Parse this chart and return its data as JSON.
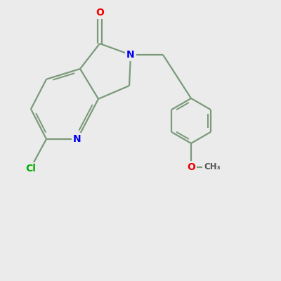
{
  "background_color": "#ebebeb",
  "bond_color": "#7a9a7a",
  "bond_width": 1.6,
  "atom_colors": {
    "N": "#0000ee",
    "O": "#ee0000",
    "Cl": "#00aa00",
    "C": "#7a9a7a"
  },
  "figsize": [
    4.0,
    4.0
  ],
  "dpi": 100,
  "xlim": [
    0,
    10
  ],
  "ylim": [
    0,
    10
  ]
}
